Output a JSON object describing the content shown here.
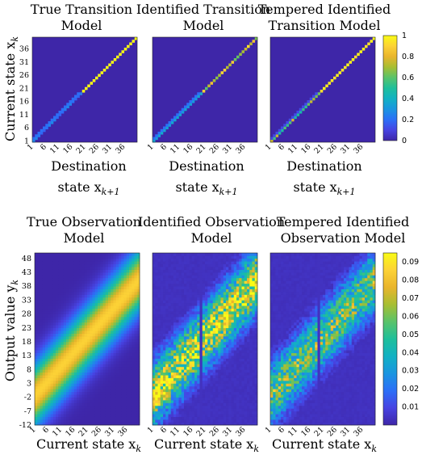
{
  "figure": {
    "colormap_stops": [
      "#3e26a8",
      "#4743e2",
      "#2c6ff7",
      "#1a95e0",
      "#12b1c3",
      "#1ebf9b",
      "#59c36a",
      "#a7be32",
      "#e9b52c",
      "#fcd236",
      "#f9fb15"
    ],
    "transition_row": {
      "state_ticks": [
        1,
        6,
        11,
        16,
        21,
        26,
        31,
        36
      ],
      "y_axis_label": "Current state x",
      "y_axis_label_sub": "k",
      "x_axis_label_line1": "Destination",
      "x_axis_label_line2": "state x",
      "x_axis_label_sub": "k+1",
      "colorbar_ticks": [
        "0",
        "0.2",
        "0.4",
        "0.6",
        "0.8",
        "1"
      ],
      "panels": [
        {
          "title_line1": "True Transition",
          "title_line2": "Model",
          "noise": 0,
          "temper": 0
        },
        {
          "title_line1": "Identified Transition",
          "title_line2": "Model",
          "noise": 0.04,
          "temper": 0
        },
        {
          "title_line1": "Tempered Identified",
          "title_line2": "Transition Model",
          "noise": 0.04,
          "temper": 1
        }
      ]
    },
    "observation_row": {
      "x_ticks": [
        1,
        6,
        11,
        16,
        21,
        26,
        31,
        36
      ],
      "y_ticks": [
        -12,
        -7,
        -2,
        3,
        8,
        13,
        18,
        23,
        28,
        33,
        38,
        43,
        48
      ],
      "y_axis_label": "Output value y",
      "y_axis_label_sub": "k",
      "x_axis_label": "Current state x",
      "x_axis_label_sub": "k",
      "colorbar_ticks": [
        "0.01",
        "0.02",
        "0.03",
        "0.04",
        "0.05",
        "0.06",
        "0.07",
        "0.08",
        "0.09"
      ],
      "panels": [
        {
          "title_line1": "True Observation",
          "title_line2": "Model",
          "noise": 0
        },
        {
          "title_line1": "Identified Observation",
          "title_line2": "Model",
          "noise": 1
        },
        {
          "title_line1": "Tempered Identified",
          "title_line2": "Observation Model",
          "noise": 0.8
        }
      ]
    }
  },
  "chart_data": [
    {
      "type": "heatmap",
      "title": "True Transition Model",
      "xlabel": "Destination state x_{k+1}",
      "ylabel": "Current state x_k",
      "x_range": [
        1,
        40
      ],
      "y_range": [
        1,
        40
      ],
      "description_values": {
        "diagonal_states_1_to_19": 0.25,
        "diagonal_states_20_to_40": 1.0
      },
      "clim": [
        0,
        1
      ]
    },
    {
      "type": "heatmap",
      "title": "Identified Transition Model",
      "xlabel": "Destination state x_{k+1}",
      "ylabel": "Current state x_k",
      "x_range": [
        1,
        40
      ],
      "y_range": [
        1,
        40
      ],
      "description_values": {
        "diagonal_states_1_to_19": 0.3,
        "diagonal_states_20_to_40": 0.75
      },
      "clim": [
        0,
        1
      ]
    },
    {
      "type": "heatmap",
      "title": "Tempered Identified Transition Model",
      "xlabel": "Destination state x_{k+1}",
      "ylabel": "Current state x_k",
      "x_range": [
        1,
        40
      ],
      "y_range": [
        1,
        40
      ],
      "description_values": {
        "diagonal_states_1_to_19": 0.55,
        "diagonal_states_20_to_40": 0.95
      },
      "clim": [
        0,
        1
      ]
    },
    {
      "type": "heatmap",
      "title": "True Observation Model",
      "xlabel": "Current state x_k",
      "ylabel": "Output value y_k",
      "x_range": [
        1,
        40
      ],
      "y_range": [
        -12,
        50
      ],
      "peak_line": {
        "y_at_state_1": -1,
        "y_at_state_40": 40,
        "peak_value": 0.085
      },
      "clim": [
        0,
        0.095
      ]
    },
    {
      "type": "heatmap",
      "title": "Identified Observation Model",
      "xlabel": "Current state x_k",
      "ylabel": "Output value y_k",
      "x_range": [
        1,
        40
      ],
      "y_range": [
        -12,
        50
      ],
      "peak_line": {
        "y_at_state_1": -1,
        "y_at_state_40": 40,
        "peak_value": 0.09
      },
      "clim": [
        0,
        0.095
      ]
    },
    {
      "type": "heatmap",
      "title": "Tempered Identified Observation Model",
      "xlabel": "Current state x_k",
      "ylabel": "Output value y_k",
      "x_range": [
        1,
        40
      ],
      "y_range": [
        -12,
        50
      ],
      "peak_line": {
        "y_at_state_1": -1,
        "y_at_state_40": 40,
        "peak_value": 0.07
      },
      "clim": [
        0,
        0.095
      ]
    }
  ]
}
